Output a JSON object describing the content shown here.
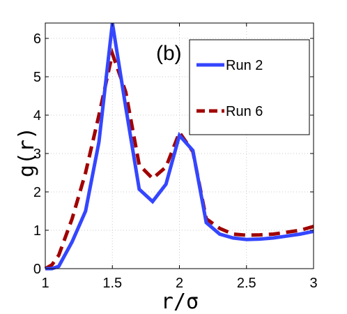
{
  "chart_data": {
    "type": "line",
    "panel_label": "(b)",
    "xlabel": "r/σ",
    "ylabel": "g(r)",
    "xlim": [
      1,
      3
    ],
    "ylim": [
      0,
      6.4
    ],
    "xticks": [
      "1",
      "1.5",
      "2",
      "2.5",
      "3"
    ],
    "yticks": [
      "0",
      "1",
      "2",
      "3",
      "4",
      "5",
      "6"
    ],
    "grid": true,
    "legend_position": "top-right",
    "series": [
      {
        "name": "Run 2",
        "color": "#3446ff",
        "style": "solid",
        "x": [
          1.0,
          1.05,
          1.1,
          1.2,
          1.3,
          1.4,
          1.5,
          1.6,
          1.7,
          1.8,
          1.9,
          2.0,
          2.1,
          2.2,
          2.3,
          2.4,
          2.5,
          2.6,
          2.7,
          2.8,
          2.9,
          3.0
        ],
        "y": [
          0.0,
          0.0,
          0.06,
          0.7,
          1.5,
          3.3,
          6.4,
          4.2,
          2.07,
          1.75,
          2.2,
          3.47,
          3.08,
          1.2,
          0.9,
          0.8,
          0.76,
          0.77,
          0.8,
          0.85,
          0.9,
          0.97
        ]
      },
      {
        "name": "Run 6",
        "color": "#a00000",
        "style": "dashed",
        "x": [
          1.0,
          1.05,
          1.1,
          1.2,
          1.3,
          1.4,
          1.5,
          1.6,
          1.7,
          1.8,
          1.9,
          2.0,
          2.1,
          2.2,
          2.3,
          2.4,
          2.5,
          2.6,
          2.7,
          2.8,
          2.9,
          3.0
        ],
        "y": [
          0.0,
          0.1,
          0.35,
          1.3,
          2.5,
          4.0,
          5.6,
          4.6,
          2.7,
          2.35,
          2.65,
          3.55,
          3.05,
          1.3,
          1.05,
          0.9,
          0.87,
          0.88,
          0.9,
          0.95,
          1.0,
          1.1
        ]
      }
    ]
  }
}
